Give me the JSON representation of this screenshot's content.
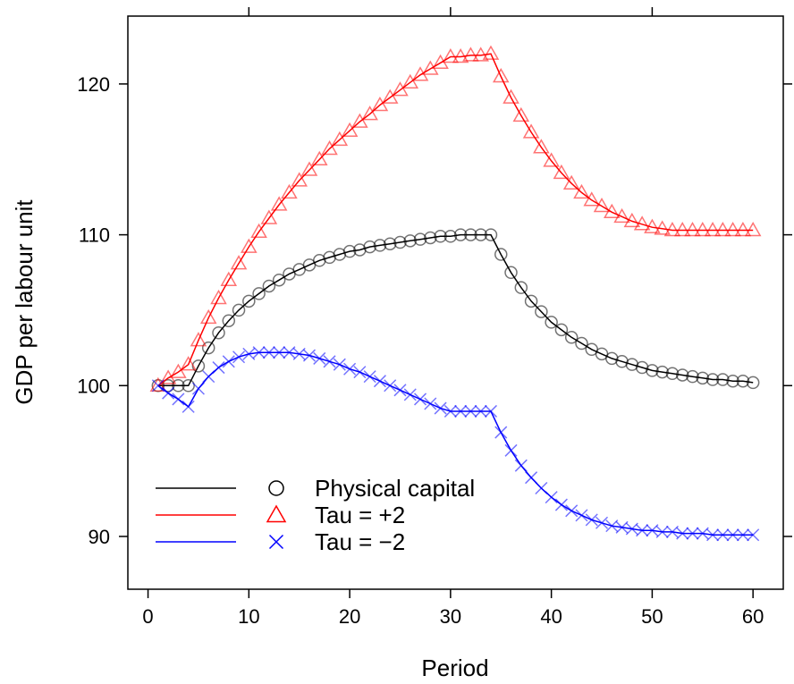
{
  "chart_data": {
    "type": "line",
    "title": "",
    "xlabel": "Period",
    "ylabel": "GDP per labour unit",
    "xlim": [
      -2,
      63
    ],
    "ylim": [
      86.5,
      124.5
    ],
    "x_ticks": [
      0,
      10,
      20,
      30,
      40,
      50,
      60
    ],
    "y_ticks": [
      90,
      100,
      110,
      120
    ],
    "x_tick_labels": [
      "0",
      "10",
      "20",
      "30",
      "40",
      "50",
      "60"
    ],
    "y_tick_labels": [
      "90",
      "100",
      "110",
      "120"
    ],
    "grid": false,
    "legend_position": "bottom-left",
    "x": [
      1,
      2,
      3,
      4,
      5,
      6,
      7,
      8,
      9,
      10,
      11,
      12,
      13,
      14,
      15,
      16,
      17,
      18,
      19,
      20,
      21,
      22,
      23,
      24,
      25,
      26,
      27,
      28,
      29,
      30,
      31,
      32,
      33,
      34,
      35,
      36,
      37,
      38,
      39,
      40,
      41,
      42,
      43,
      44,
      45,
      46,
      47,
      48,
      49,
      50,
      51,
      52,
      53,
      54,
      55,
      56,
      57,
      58,
      59,
      60
    ],
    "series": [
      {
        "name": "Physical capital",
        "color": "#000000",
        "marker": "circle",
        "values": [
          100.0,
          100.0,
          100.0,
          100.0,
          101.3,
          102.5,
          103.5,
          104.3,
          105.0,
          105.6,
          106.1,
          106.6,
          107.0,
          107.4,
          107.7,
          108.0,
          108.3,
          108.5,
          108.7,
          108.9,
          109.0,
          109.2,
          109.3,
          109.4,
          109.5,
          109.6,
          109.7,
          109.8,
          109.9,
          109.9,
          110.0,
          110.0,
          110.0,
          110.0,
          108.7,
          107.5,
          106.5,
          105.6,
          104.9,
          104.2,
          103.7,
          103.2,
          102.8,
          102.4,
          102.1,
          101.8,
          101.6,
          101.4,
          101.2,
          101.0,
          100.9,
          100.8,
          100.7,
          100.6,
          100.5,
          100.4,
          100.4,
          100.3,
          100.3,
          100.2
        ]
      },
      {
        "name": "Tau = +2",
        "color": "#ff0000",
        "marker": "triangle",
        "values": [
          100.0,
          100.5,
          100.9,
          101.4,
          103.0,
          104.5,
          105.8,
          107.0,
          108.1,
          109.2,
          110.2,
          111.1,
          112.0,
          112.8,
          113.6,
          114.3,
          115.0,
          115.7,
          116.3,
          116.9,
          117.5,
          118.0,
          118.6,
          119.1,
          119.6,
          120.1,
          120.6,
          121.0,
          121.4,
          121.8,
          121.8,
          121.9,
          121.9,
          122.0,
          120.5,
          119.1,
          117.9,
          116.8,
          115.8,
          114.9,
          114.1,
          113.4,
          112.8,
          112.3,
          111.9,
          111.5,
          111.2,
          110.9,
          110.7,
          110.5,
          110.4,
          110.3,
          110.3,
          110.3,
          110.3,
          110.3,
          110.3,
          110.3,
          110.3,
          110.3
        ]
      },
      {
        "name": "Tau = −2",
        "color": "#0000ff",
        "marker": "cross",
        "values": [
          100.0,
          99.5,
          99.1,
          98.6,
          99.8,
          100.6,
          101.2,
          101.6,
          101.9,
          102.1,
          102.2,
          102.2,
          102.2,
          102.2,
          102.1,
          102.0,
          101.8,
          101.6,
          101.4,
          101.1,
          100.9,
          100.6,
          100.3,
          100.0,
          99.7,
          99.4,
          99.1,
          98.8,
          98.5,
          98.3,
          98.3,
          98.3,
          98.3,
          98.3,
          96.9,
          95.7,
          94.7,
          93.9,
          93.2,
          92.6,
          92.1,
          91.7,
          91.4,
          91.1,
          90.9,
          90.7,
          90.6,
          90.5,
          90.4,
          90.4,
          90.3,
          90.3,
          90.2,
          90.2,
          90.2,
          90.1,
          90.1,
          90.1,
          90.1,
          90.1
        ]
      }
    ]
  }
}
